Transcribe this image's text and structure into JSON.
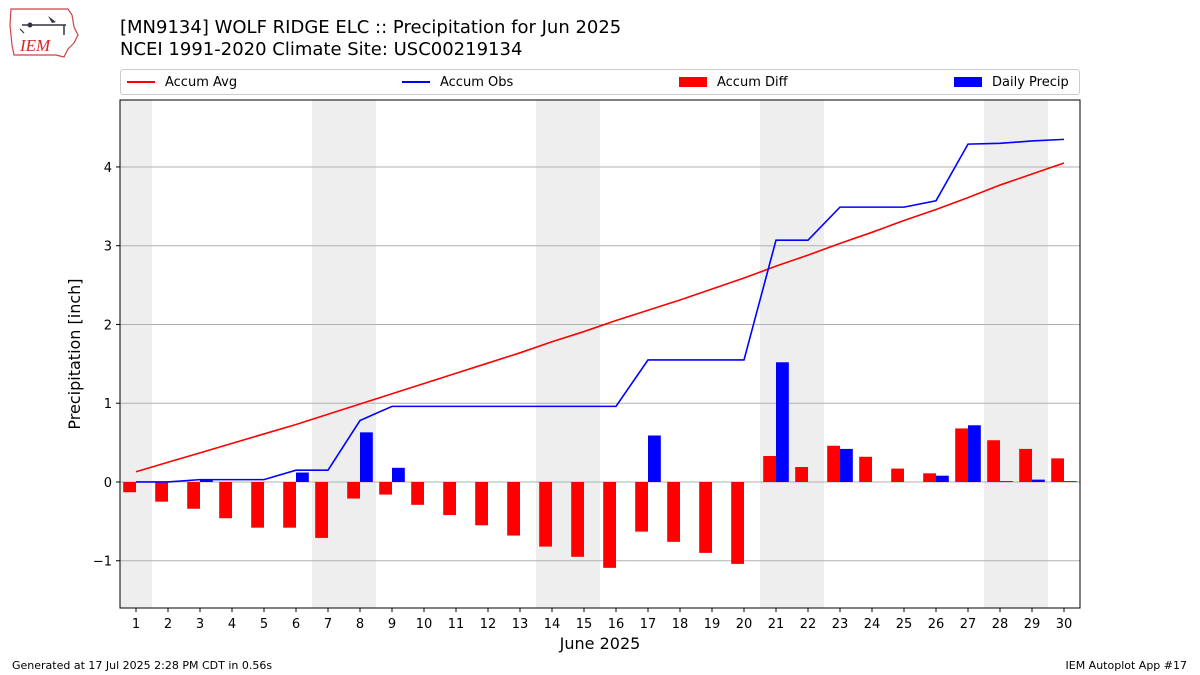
{
  "logo": {
    "text": "IEM",
    "icon": "iowa-state-map-logo"
  },
  "chart_data": {
    "type": "bar",
    "title": "[MN9134] WOLF RIDGE ELC :: Precipitation for Jun 2025",
    "subtitle": "NCEI 1991-2020 Climate Site: USC00219134",
    "xlabel": "June 2025",
    "ylabel": "Precipitation [inch]",
    "x": [
      1,
      2,
      3,
      4,
      5,
      6,
      7,
      8,
      9,
      10,
      11,
      12,
      13,
      14,
      15,
      16,
      17,
      18,
      19,
      20,
      21,
      22,
      23,
      24,
      25,
      26,
      27,
      28,
      29,
      30
    ],
    "xticks": [
      "1",
      "2",
      "3",
      "4",
      "5",
      "6",
      "7",
      "8",
      "9",
      "10",
      "11",
      "12",
      "13",
      "14",
      "15",
      "16",
      "17",
      "18",
      "19",
      "20",
      "21",
      "22",
      "23",
      "24",
      "25",
      "26",
      "27",
      "28",
      "29",
      "30"
    ],
    "ylim": [
      -1.6,
      4.85
    ],
    "yticks": [
      -1,
      0,
      1,
      2,
      3,
      4
    ],
    "ytick_labels": [
      "−1",
      "0",
      "1",
      "2",
      "3",
      "4"
    ],
    "grid": "y",
    "legend_position": "top",
    "weekend_shading_days": [
      1,
      7,
      8,
      14,
      15,
      21,
      22,
      28,
      29
    ],
    "series": [
      {
        "name": "Accum Avg",
        "type": "line",
        "color": "#ff0000",
        "values": [
          0.13,
          0.25,
          0.37,
          0.49,
          0.61,
          0.73,
          0.86,
          0.99,
          1.12,
          1.25,
          1.38,
          1.51,
          1.64,
          1.78,
          1.91,
          2.05,
          2.18,
          2.31,
          2.45,
          2.59,
          2.74,
          2.88,
          3.03,
          3.17,
          3.32,
          3.46,
          3.61,
          3.77,
          3.91,
          4.05
        ]
      },
      {
        "name": "Accum Obs",
        "type": "line",
        "color": "#0000ff",
        "values": [
          0.0,
          0.0,
          0.03,
          0.03,
          0.03,
          0.15,
          0.15,
          0.78,
          0.96,
          0.96,
          0.96,
          0.96,
          0.96,
          0.96,
          0.96,
          0.96,
          1.55,
          1.55,
          1.55,
          1.55,
          3.07,
          3.07,
          3.49,
          3.49,
          3.49,
          3.57,
          4.29,
          4.3,
          4.33,
          4.35
        ]
      },
      {
        "name": "Accum Diff",
        "type": "bar",
        "color": "#ff0000",
        "values": [
          -0.13,
          -0.25,
          -0.34,
          -0.46,
          -0.58,
          -0.58,
          -0.71,
          -0.21,
          -0.16,
          -0.29,
          -0.42,
          -0.55,
          -0.68,
          -0.82,
          -0.95,
          -1.09,
          -0.63,
          -0.76,
          -0.9,
          -1.04,
          0.33,
          0.19,
          0.46,
          0.32,
          0.17,
          0.11,
          0.68,
          0.53,
          0.42,
          0.3
        ]
      },
      {
        "name": "Daily Precip",
        "type": "bar",
        "color": "#0000ff",
        "values": [
          0,
          0,
          0.03,
          0,
          0,
          0.12,
          0,
          0.63,
          0.18,
          0,
          0,
          0,
          0,
          0,
          0,
          0,
          0.59,
          0,
          0,
          0,
          1.52,
          0,
          0.42,
          0,
          0,
          0.08,
          0.72,
          0.01,
          0.03,
          0.01
        ]
      }
    ]
  },
  "footer": {
    "left": "Generated at 17 Jul 2025 2:28 PM CDT in 0.56s",
    "right": "IEM Autoplot App #17"
  }
}
